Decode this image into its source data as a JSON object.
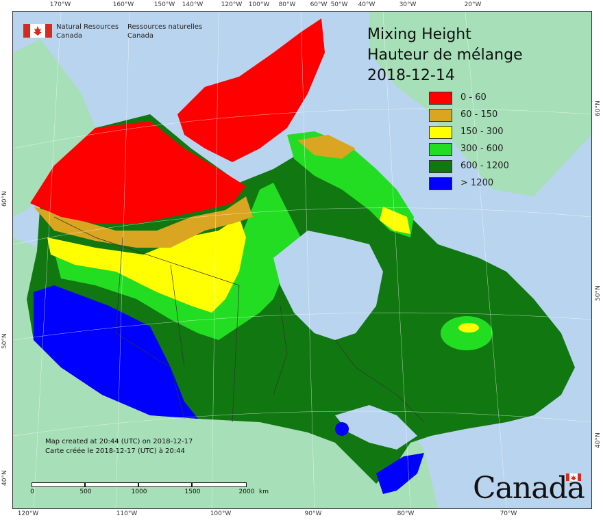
{
  "map": {
    "title_en": "Mixing Height",
    "title_fr": "Hauteur de mélange",
    "date": "2018-12-14",
    "agency_en_line1": "Natural Resources",
    "agency_en_line2": "Canada",
    "agency_fr_line1": "Ressources naturelles",
    "agency_fr_line2": "Canada",
    "credit_en": "Map created at 20:44 (UTC) on 2018-12-17",
    "credit_fr": "Carte créée le 2018-12-17 (UTC) à 20:44",
    "wordmark": "Canada",
    "scale": {
      "labels": [
        "0",
        "500",
        "1000",
        "1500",
        "2000"
      ],
      "unit": "km"
    },
    "legend": [
      {
        "label": "0 - 60",
        "color": "#ff0000"
      },
      {
        "label": "60 - 150",
        "color": "#daa520"
      },
      {
        "label": "150 - 300",
        "color": "#ffff00"
      },
      {
        "label": "300 - 600",
        "color": "#22dd22"
      },
      {
        "label": "600 - 1200",
        "color": "#117711"
      },
      {
        "label": "> 1200",
        "color": "#0000ff"
      }
    ],
    "graticule": {
      "top": [
        "170°W",
        "160°W",
        "150°W",
        "140°W",
        "120°W",
        "100°W",
        "80°W",
        "60°W",
        "50°W",
        "40°W",
        "30°W",
        "20°W"
      ],
      "bottom": [
        "120°W",
        "110°W",
        "100°W",
        "90°W",
        "80°W",
        "70°W"
      ],
      "left": [
        "60°N",
        "50°N",
        "40°N"
      ],
      "right": [
        "60°N",
        "50°N",
        "40°N"
      ]
    },
    "colors": {
      "ocean": "#b9d4ee",
      "foreign_land": "#a6dfb8",
      "border": "#333333"
    }
  }
}
